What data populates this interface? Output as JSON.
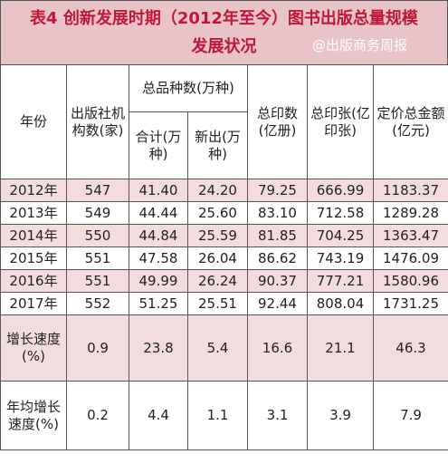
{
  "title": {
    "line1": "表4 创新发展时期（2012年至今）图书出版总量规模",
    "line2": "发展状况",
    "watermark": "@出版商务周报"
  },
  "header": {
    "year": "年份",
    "publishers": "出版社机构数(家)",
    "total_titles": "总品种数(万种)",
    "subtotal": "合计(万种)",
    "new_titles": "新出(万种)",
    "prints": "总印数(亿册)",
    "sheets": "总印张(亿印张)",
    "value": "定价总金额(亿元)"
  },
  "rows": [
    {
      "year": "2012年",
      "publishers": "547",
      "subtotal": "41.40",
      "new": "24.20",
      "prints": "79.25",
      "sheets": "666.99",
      "value": "1183.37"
    },
    {
      "year": "2013年",
      "publishers": "549",
      "subtotal": "44.44",
      "new": "25.60",
      "prints": "83.10",
      "sheets": "712.58",
      "value": "1289.28"
    },
    {
      "year": "2014年",
      "publishers": "550",
      "subtotal": "44.84",
      "new": "25.59",
      "prints": "81.85",
      "sheets": "704.25",
      "value": "1363.47"
    },
    {
      "year": "2015年",
      "publishers": "551",
      "subtotal": "47.58",
      "new": "26.04",
      "prints": "86.62",
      "sheets": "743.19",
      "value": "1476.09"
    },
    {
      "year": "2016年",
      "publishers": "551",
      "subtotal": "49.99",
      "new": "26.24",
      "prints": "90.37",
      "sheets": "777.21",
      "value": "1580.96"
    },
    {
      "year": "2017年",
      "publishers": "552",
      "subtotal": "51.25",
      "new": "25.51",
      "prints": "92.44",
      "sheets": "808.04",
      "value": "1731.25"
    }
  ],
  "growth": {
    "label": "增长速度(%)",
    "publishers": "0.9",
    "subtotal": "23.8",
    "new": "5.4",
    "prints": "16.6",
    "sheets": "21.1",
    "value": "46.3"
  },
  "annual_growth": {
    "label": "年均增长速度(%)",
    "publishers": "0.2",
    "subtotal": "4.4",
    "new": "1.1",
    "prints": "3.1",
    "sheets": "3.9",
    "value": "7.9"
  }
}
